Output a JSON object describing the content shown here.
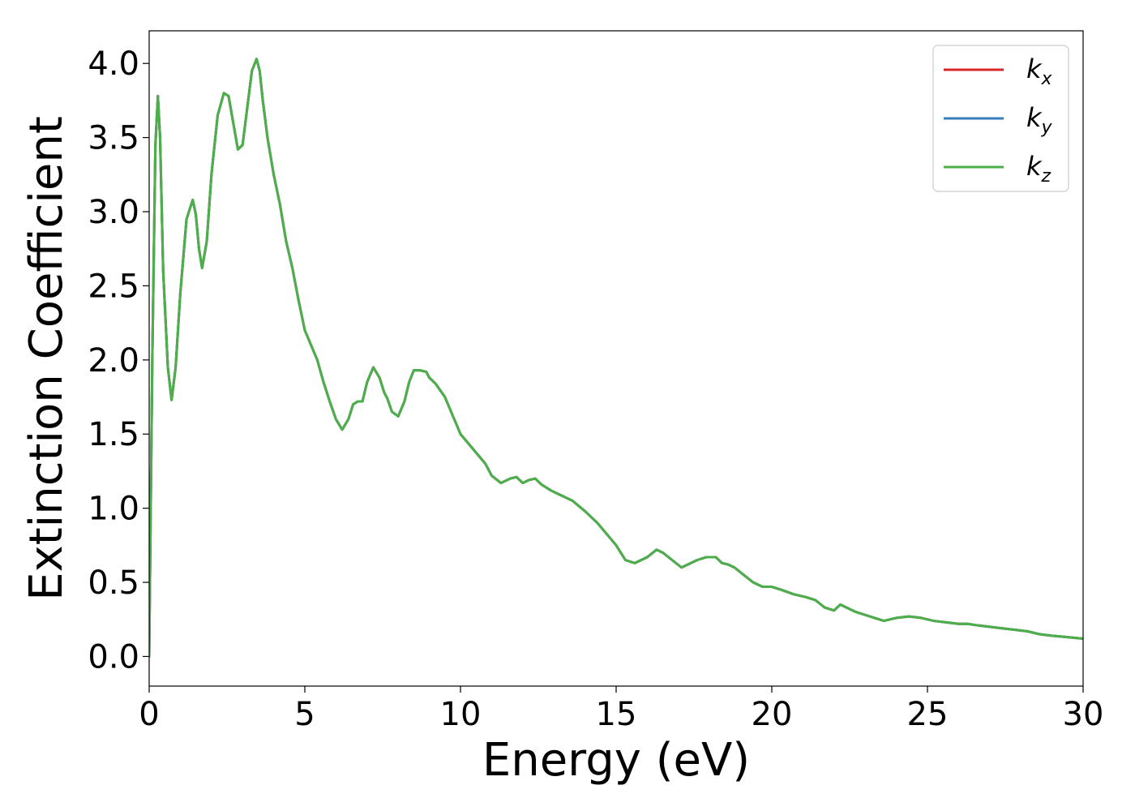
{
  "chart_data": {
    "type": "line",
    "title": "",
    "xlabel": "Energy (eV)",
    "ylabel": "Extinction Coefficient",
    "xlim": [
      0,
      30
    ],
    "ylim": [
      -0.2,
      4.22
    ],
    "xticks": [
      0,
      5,
      10,
      15,
      20,
      25,
      30
    ],
    "xtick_labels": [
      "0",
      "5",
      "10",
      "15",
      "20",
      "25",
      "30"
    ],
    "yticks": [
      0.0,
      0.5,
      1.0,
      1.5,
      2.0,
      2.5,
      3.0,
      3.5,
      4.0
    ],
    "ytick_labels": [
      "0.0",
      "0.5",
      "1.0",
      "1.5",
      "2.0",
      "2.5",
      "3.0",
      "3.5",
      "4.0"
    ],
    "grid": false,
    "legend_position": "top-right",
    "series": [
      {
        "name": "k",
        "subscript": "x",
        "color": "#d62728",
        "x": [
          0,
          0.1,
          0.2,
          0.28,
          0.35,
          0.45,
          0.6,
          0.72,
          0.85,
          1.0,
          1.2,
          1.4,
          1.5,
          1.6,
          1.7,
          1.85,
          2.0,
          2.2,
          2.4,
          2.55,
          2.7,
          2.85,
          3.0,
          3.15,
          3.3,
          3.45,
          3.55,
          3.65,
          3.8,
          4.0,
          4.2,
          4.4,
          4.6,
          4.8,
          5.0,
          5.2,
          5.4,
          5.6,
          5.8,
          6.0,
          6.2,
          6.4,
          6.55,
          6.7,
          6.85,
          7.0,
          7.2,
          7.4,
          7.55,
          7.65,
          7.8,
          8.0,
          8.2,
          8.35,
          8.5,
          8.7,
          8.9,
          9.0,
          9.2,
          9.5,
          9.8,
          10.0,
          10.2,
          10.4,
          10.6,
          10.8,
          11.0,
          11.3,
          11.6,
          11.8,
          12.0,
          12.2,
          12.4,
          12.6,
          12.9,
          13.1,
          13.3,
          13.6,
          14.0,
          14.4,
          14.8,
          15.0,
          15.3,
          15.6,
          15.8,
          16.0,
          16.3,
          16.5,
          16.8,
          17.1,
          17.3,
          17.6,
          17.9,
          18.2,
          18.4,
          18.6,
          18.8,
          19.1,
          19.4,
          19.7,
          20.0,
          20.3,
          20.7,
          21.1,
          21.4,
          21.7,
          22.0,
          22.2,
          22.4,
          22.7,
          23.0,
          23.3,
          23.6,
          24.0,
          24.4,
          24.8,
          25.2,
          25.6,
          26.0,
          26.3,
          26.6,
          27.0,
          27.4,
          27.8,
          28.2,
          28.6,
          29.0,
          29.5,
          30.0
        ],
        "y": [
          0.0,
          2.0,
          3.45,
          3.78,
          3.5,
          2.6,
          1.95,
          1.73,
          1.95,
          2.45,
          2.95,
          3.08,
          2.98,
          2.75,
          2.62,
          2.8,
          3.25,
          3.65,
          3.8,
          3.78,
          3.6,
          3.42,
          3.45,
          3.7,
          3.95,
          4.03,
          3.95,
          3.75,
          3.5,
          3.25,
          3.05,
          2.8,
          2.62,
          2.4,
          2.2,
          2.1,
          2.0,
          1.85,
          1.72,
          1.6,
          1.53,
          1.6,
          1.7,
          1.72,
          1.72,
          1.85,
          1.95,
          1.88,
          1.78,
          1.74,
          1.65,
          1.62,
          1.72,
          1.85,
          1.93,
          1.93,
          1.92,
          1.88,
          1.84,
          1.75,
          1.6,
          1.5,
          1.45,
          1.4,
          1.35,
          1.3,
          1.22,
          1.17,
          1.2,
          1.21,
          1.17,
          1.19,
          1.2,
          1.16,
          1.12,
          1.1,
          1.08,
          1.05,
          0.98,
          0.9,
          0.8,
          0.75,
          0.65,
          0.63,
          0.65,
          0.67,
          0.72,
          0.7,
          0.65,
          0.6,
          0.62,
          0.65,
          0.67,
          0.67,
          0.63,
          0.62,
          0.6,
          0.55,
          0.5,
          0.47,
          0.47,
          0.45,
          0.42,
          0.4,
          0.38,
          0.33,
          0.31,
          0.35,
          0.33,
          0.3,
          0.28,
          0.26,
          0.24,
          0.26,
          0.27,
          0.26,
          0.24,
          0.23,
          0.22,
          0.22,
          0.21,
          0.2,
          0.19,
          0.18,
          0.17,
          0.15,
          0.14,
          0.13,
          0.12
        ]
      },
      {
        "name": "k",
        "subscript": "y",
        "color": "#377eb8",
        "x": [
          0,
          0.1,
          0.2,
          0.28,
          0.35,
          0.45,
          0.6,
          0.72,
          0.85,
          1.0,
          1.2,
          1.4,
          1.5,
          1.6,
          1.7,
          1.85,
          2.0,
          2.2,
          2.4,
          2.55,
          2.7,
          2.85,
          3.0,
          3.15,
          3.3,
          3.45,
          3.55,
          3.65,
          3.8,
          4.0,
          4.2,
          4.4,
          4.6,
          4.8,
          5.0,
          5.2,
          5.4,
          5.6,
          5.8,
          6.0,
          6.2,
          6.4,
          6.55,
          6.7,
          6.85,
          7.0,
          7.2,
          7.4,
          7.55,
          7.65,
          7.8,
          8.0,
          8.2,
          8.35,
          8.5,
          8.7,
          8.9,
          9.0,
          9.2,
          9.5,
          9.8,
          10.0,
          10.2,
          10.4,
          10.6,
          10.8,
          11.0,
          11.3,
          11.6,
          11.8,
          12.0,
          12.2,
          12.4,
          12.6,
          12.9,
          13.1,
          13.3,
          13.6,
          14.0,
          14.4,
          14.8,
          15.0,
          15.3,
          15.6,
          15.8,
          16.0,
          16.3,
          16.5,
          16.8,
          17.1,
          17.3,
          17.6,
          17.9,
          18.2,
          18.4,
          18.6,
          18.8,
          19.1,
          19.4,
          19.7,
          20.0,
          20.3,
          20.7,
          21.1,
          21.4,
          21.7,
          22.0,
          22.2,
          22.4,
          22.7,
          23.0,
          23.3,
          23.6,
          24.0,
          24.4,
          24.8,
          25.2,
          25.6,
          26.0,
          26.3,
          26.6,
          27.0,
          27.4,
          27.8,
          28.2,
          28.6,
          29.0,
          29.5,
          30.0
        ],
        "y": [
          0.0,
          2.0,
          3.45,
          3.78,
          3.5,
          2.6,
          1.95,
          1.73,
          1.95,
          2.45,
          2.95,
          3.08,
          2.98,
          2.75,
          2.62,
          2.8,
          3.25,
          3.65,
          3.8,
          3.78,
          3.6,
          3.42,
          3.45,
          3.7,
          3.95,
          4.03,
          3.95,
          3.75,
          3.5,
          3.25,
          3.05,
          2.8,
          2.62,
          2.4,
          2.2,
          2.1,
          2.0,
          1.85,
          1.72,
          1.6,
          1.53,
          1.6,
          1.7,
          1.72,
          1.72,
          1.85,
          1.95,
          1.88,
          1.78,
          1.74,
          1.65,
          1.62,
          1.72,
          1.85,
          1.93,
          1.93,
          1.92,
          1.88,
          1.84,
          1.75,
          1.6,
          1.5,
          1.45,
          1.4,
          1.35,
          1.3,
          1.22,
          1.17,
          1.2,
          1.21,
          1.17,
          1.19,
          1.2,
          1.16,
          1.12,
          1.1,
          1.08,
          1.05,
          0.98,
          0.9,
          0.8,
          0.75,
          0.65,
          0.63,
          0.65,
          0.67,
          0.72,
          0.7,
          0.65,
          0.6,
          0.62,
          0.65,
          0.67,
          0.67,
          0.63,
          0.62,
          0.6,
          0.55,
          0.5,
          0.47,
          0.47,
          0.45,
          0.42,
          0.4,
          0.38,
          0.33,
          0.31,
          0.35,
          0.33,
          0.3,
          0.28,
          0.26,
          0.24,
          0.26,
          0.27,
          0.26,
          0.24,
          0.23,
          0.22,
          0.22,
          0.21,
          0.2,
          0.19,
          0.18,
          0.17,
          0.15,
          0.14,
          0.13,
          0.12
        ]
      },
      {
        "name": "k",
        "subscript": "z",
        "color": "#4daf4a",
        "x": [
          0,
          0.1,
          0.2,
          0.28,
          0.35,
          0.45,
          0.6,
          0.72,
          0.85,
          1.0,
          1.2,
          1.4,
          1.5,
          1.6,
          1.7,
          1.85,
          2.0,
          2.2,
          2.4,
          2.55,
          2.7,
          2.85,
          3.0,
          3.15,
          3.3,
          3.45,
          3.55,
          3.65,
          3.8,
          4.0,
          4.2,
          4.4,
          4.6,
          4.8,
          5.0,
          5.2,
          5.4,
          5.6,
          5.8,
          6.0,
          6.2,
          6.4,
          6.55,
          6.7,
          6.85,
          7.0,
          7.2,
          7.4,
          7.55,
          7.65,
          7.8,
          8.0,
          8.2,
          8.35,
          8.5,
          8.7,
          8.9,
          9.0,
          9.2,
          9.5,
          9.8,
          10.0,
          10.2,
          10.4,
          10.6,
          10.8,
          11.0,
          11.3,
          11.6,
          11.8,
          12.0,
          12.2,
          12.4,
          12.6,
          12.9,
          13.1,
          13.3,
          13.6,
          14.0,
          14.4,
          14.8,
          15.0,
          15.3,
          15.6,
          15.8,
          16.0,
          16.3,
          16.5,
          16.8,
          17.1,
          17.3,
          17.6,
          17.9,
          18.2,
          18.4,
          18.6,
          18.8,
          19.1,
          19.4,
          19.7,
          20.0,
          20.3,
          20.7,
          21.1,
          21.4,
          21.7,
          22.0,
          22.2,
          22.4,
          22.7,
          23.0,
          23.3,
          23.6,
          24.0,
          24.4,
          24.8,
          25.2,
          25.6,
          26.0,
          26.3,
          26.6,
          27.0,
          27.4,
          27.8,
          28.2,
          28.6,
          29.0,
          29.5,
          30.0
        ],
        "y": [
          0.0,
          2.0,
          3.45,
          3.78,
          3.5,
          2.6,
          1.95,
          1.73,
          1.95,
          2.45,
          2.95,
          3.08,
          2.98,
          2.75,
          2.62,
          2.8,
          3.25,
          3.65,
          3.8,
          3.78,
          3.6,
          3.42,
          3.45,
          3.7,
          3.95,
          4.03,
          3.95,
          3.75,
          3.5,
          3.25,
          3.05,
          2.8,
          2.62,
          2.4,
          2.2,
          2.1,
          2.0,
          1.85,
          1.72,
          1.6,
          1.53,
          1.6,
          1.7,
          1.72,
          1.72,
          1.85,
          1.95,
          1.88,
          1.78,
          1.74,
          1.65,
          1.62,
          1.72,
          1.85,
          1.93,
          1.93,
          1.92,
          1.88,
          1.84,
          1.75,
          1.6,
          1.5,
          1.45,
          1.4,
          1.35,
          1.3,
          1.22,
          1.17,
          1.2,
          1.21,
          1.17,
          1.19,
          1.2,
          1.16,
          1.12,
          1.1,
          1.08,
          1.05,
          0.98,
          0.9,
          0.8,
          0.75,
          0.65,
          0.63,
          0.65,
          0.67,
          0.72,
          0.7,
          0.65,
          0.6,
          0.62,
          0.65,
          0.67,
          0.67,
          0.63,
          0.62,
          0.6,
          0.55,
          0.5,
          0.47,
          0.47,
          0.45,
          0.42,
          0.4,
          0.38,
          0.33,
          0.31,
          0.35,
          0.33,
          0.3,
          0.28,
          0.26,
          0.24,
          0.26,
          0.27,
          0.26,
          0.24,
          0.23,
          0.22,
          0.22,
          0.21,
          0.2,
          0.19,
          0.18,
          0.17,
          0.15,
          0.14,
          0.13,
          0.12
        ]
      }
    ]
  }
}
